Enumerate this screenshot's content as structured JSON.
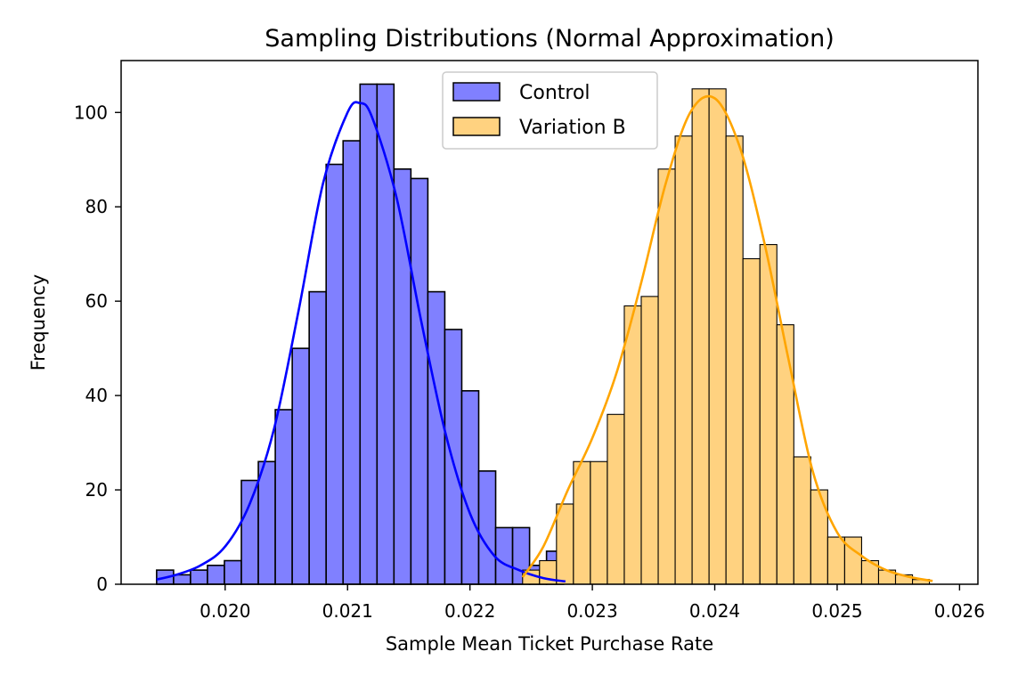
{
  "chart_data": {
    "type": "bar",
    "title": "Sampling Distributions (Normal Approximation)",
    "xlabel": "Sample Mean Ticket Purchase Rate",
    "ylabel": "Frequency",
    "xlim": [
      0.01915,
      0.02615
    ],
    "ylim": [
      0,
      111
    ],
    "xticks": [
      "0.020",
      "0.021",
      "0.022",
      "0.023",
      "0.024",
      "0.025",
      "0.026"
    ],
    "xtick_values": [
      0.02,
      0.021,
      0.022,
      0.023,
      0.024,
      0.025,
      0.026
    ],
    "yticks": [
      "0",
      "20",
      "40",
      "60",
      "80",
      "100"
    ],
    "ytick_values": [
      0,
      20,
      40,
      60,
      80,
      100
    ],
    "grid": false,
    "legend": "top-center",
    "series": [
      {
        "name": "Control",
        "fill": "#8080ff",
        "edge": "#000000",
        "curve_color": "#0000ff",
        "bin_start": 0.01944,
        "bin_width": 0.0001385,
        "counts": [
          3,
          2,
          3,
          4,
          5,
          22,
          26,
          37,
          50,
          62,
          89,
          94,
          106,
          106,
          88,
          86,
          62,
          54,
          41,
          24,
          12,
          12,
          4,
          7
        ],
        "kde": {
          "x": [
            0.01944,
            0.0196,
            0.0198,
            0.02,
            0.0202,
            0.0204,
            0.0206,
            0.0208,
            0.021,
            0.0211,
            0.0212,
            0.0214,
            0.0216,
            0.0218,
            0.022,
            0.0222,
            0.0224,
            0.0226,
            0.02278
          ],
          "y": [
            1,
            2,
            4,
            8,
            17,
            33,
            58,
            85,
            100,
            102,
            99,
            82,
            56,
            32,
            15,
            6,
            3,
            1.3,
            0.6
          ]
        }
      },
      {
        "name": "Variation B",
        "fill": "#ffd280",
        "edge": "#000000",
        "curve_color": "#ffa500",
        "bin_start": 0.02243,
        "bin_width": 0.0001385,
        "counts": [
          3,
          5,
          17,
          26,
          26,
          36,
          59,
          61,
          88,
          95,
          105,
          105,
          95,
          69,
          72,
          55,
          27,
          20,
          10,
          10,
          5,
          3,
          2,
          1
        ],
        "kde": {
          "x": [
            0.02243,
            0.0226,
            0.0228,
            0.023,
            0.0232,
            0.0234,
            0.0236,
            0.0238,
            0.024,
            0.0242,
            0.0244,
            0.0246,
            0.0248,
            0.025,
            0.0252,
            0.0254,
            0.0256,
            0.02578
          ],
          "y": [
            1.5,
            8,
            20,
            31,
            45,
            64,
            85,
            100,
            103,
            93,
            73,
            48,
            24,
            11,
            6,
            3,
            1.5,
            0.7
          ]
        }
      }
    ]
  }
}
